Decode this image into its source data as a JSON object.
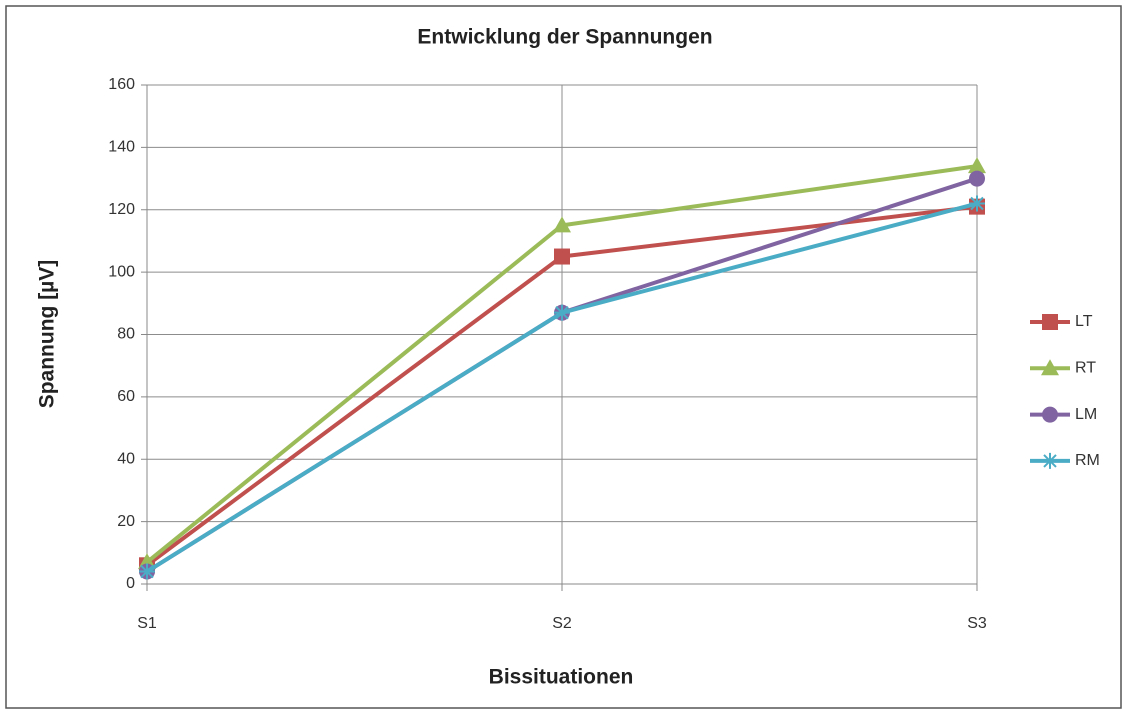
{
  "chart_data": {
    "type": "line",
    "title": "Entwicklung der Spannungen",
    "xlabel": "Bissituationen",
    "ylabel": "Spannung [µV]",
    "categories": [
      "S1",
      "S2",
      "S3"
    ],
    "series": [
      {
        "name": "LT",
        "color": "#c0504d",
        "marker": "square",
        "values": [
          6,
          105,
          121
        ]
      },
      {
        "name": "RT",
        "color": "#9bbb59",
        "marker": "triangle",
        "values": [
          7,
          115,
          134
        ]
      },
      {
        "name": "LM",
        "color": "#8064a2",
        "marker": "circle",
        "values": [
          4,
          87,
          130
        ]
      },
      {
        "name": "RM",
        "color": "#4bacc6",
        "marker": "star",
        "values": [
          4,
          87,
          122
        ]
      }
    ],
    "ylim": [
      0,
      160
    ],
    "yticks": [
      0,
      20,
      40,
      60,
      80,
      100,
      120,
      140,
      160
    ],
    "grid": true,
    "legend": "right"
  }
}
